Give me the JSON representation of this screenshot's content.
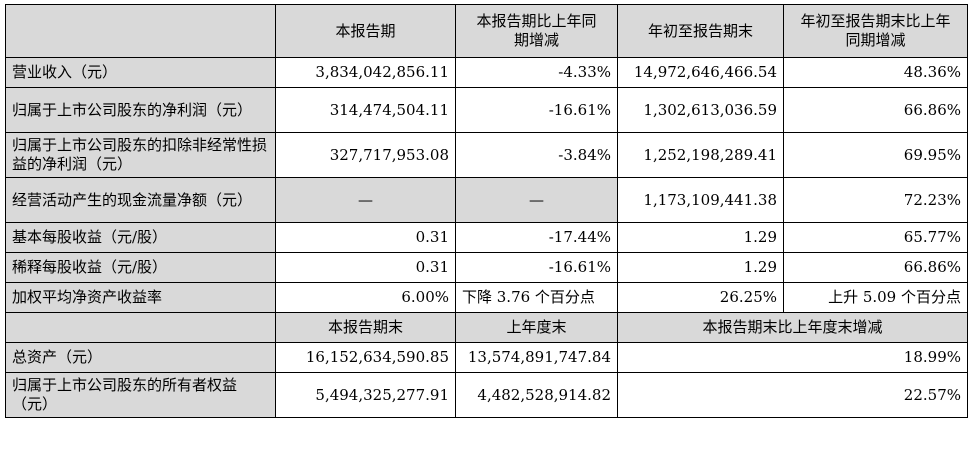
{
  "header1": [
    "本报告期",
    "本报告期比上年同期增减",
    "年初至报告期末",
    "年初至报告期末比上年同期增减"
  ],
  "rows1": [
    {
      "label": "营业收入（元）",
      "v1": "3,834,042,856.11",
      "v2": "-4.33%",
      "v3": "14,972,646,466.54",
      "v4": "48.36%"
    },
    {
      "label": "归属于上市公司股东的净利润（元）",
      "v1": "314,474,504.11",
      "v2": "-16.61%",
      "v3": "1,302,613,036.59",
      "v4": "66.86%"
    },
    {
      "label": "归属于上市公司股东的扣除非经常性损益的净利润（元）",
      "v1": "327,717,953.08",
      "v2": "-3.84%",
      "v3": "1,252,198,289.41",
      "v4": "69.95%"
    },
    {
      "label": "经营活动产生的现金流量净额（元）",
      "v1": "—",
      "v2": "—",
      "v3": "1,173,109,441.38",
      "v4": "72.23%"
    },
    {
      "label": "基本每股收益（元/股）",
      "v1": "0.31",
      "v2": "-17.44%",
      "v3": "1.29",
      "v4": "65.77%"
    },
    {
      "label": "稀释每股收益（元/股）",
      "v1": "0.31",
      "v2": "-16.61%",
      "v3": "1.29",
      "v4": "66.86%"
    },
    {
      "label": "加权平均净资产收益率",
      "v1": "6.00%",
      "v2": "下降 3.76 个百分点",
      "v3": "26.25%",
      "v4": "上升 5.09 个百分点"
    }
  ],
  "header2": [
    "本报告期末",
    "上年度末",
    "本报告期末比上年度末增减"
  ],
  "rows2": [
    {
      "label": "总资产（元）",
      "v1": "16,152,634,590.85",
      "v2": "13,574,891,747.84",
      "v3": "18.99%"
    },
    {
      "label": "归属于上市公司股东的所有者权益（元）",
      "v1": "5,494,325,277.91",
      "v2": "4,482,528,914.82",
      "v3": "22.57%"
    }
  ]
}
